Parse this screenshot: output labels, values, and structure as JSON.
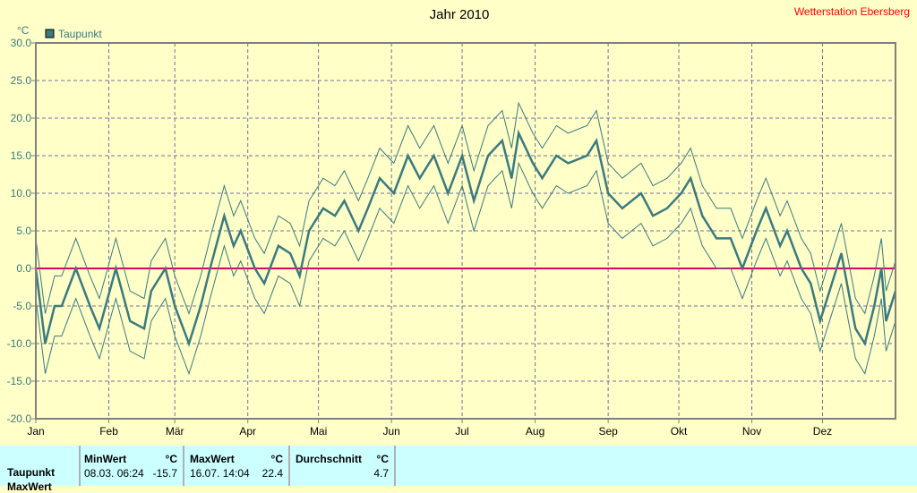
{
  "header": {
    "station": "Wetterstation Ebersberg"
  },
  "chart_data": {
    "type": "line",
    "title": "Jahr 2010",
    "ylabel": "°C",
    "ylim": [
      -20,
      30
    ],
    "yticks": [
      "30.0",
      "25.0",
      "20.0",
      "15.0",
      "10.0",
      "5.0",
      "0.0",
      "-5.0",
      "-10.0",
      "-15.0",
      "-20.0"
    ],
    "ytick_values": [
      30,
      25,
      20,
      15,
      10,
      5,
      0,
      -5,
      -10,
      -15,
      -20
    ],
    "xlim_days": [
      0,
      365
    ],
    "months": [
      "Jan",
      "Feb",
      "Mär",
      "Apr",
      "Mai",
      "Jun",
      "Jul",
      "Aug",
      "Sep",
      "Okt",
      "Nov",
      "Dez"
    ],
    "month_start_days": [
      0,
      31,
      59,
      90,
      120,
      151,
      181,
      212,
      243,
      273,
      304,
      334
    ],
    "grid": true,
    "legend": {
      "placement": "top-left",
      "entries": [
        "Taupunkt"
      ]
    },
    "reference_line": 0,
    "colors": {
      "series": "#3a7a80",
      "zero": "#e0006a",
      "grid": "#7070a0",
      "axis": "#808080"
    },
    "series": [
      {
        "name": "Taupunkt",
        "days": [
          0,
          4,
          8,
          11,
          17,
          23,
          27,
          34,
          40,
          46,
          49,
          55,
          59,
          65,
          70,
          74,
          80,
          84,
          87,
          93,
          97,
          103,
          108,
          112,
          116,
          122,
          127,
          131,
          137,
          141,
          146,
          152,
          158,
          163,
          169,
          175,
          181,
          186,
          192,
          198,
          202,
          205,
          211,
          215,
          221,
          226,
          234,
          238,
          243,
          249,
          257,
          262,
          268,
          274,
          278,
          283,
          289,
          295,
          300,
          306,
          310,
          316,
          319,
          325,
          329,
          333,
          336,
          342,
          348,
          352,
          356,
          359,
          361,
          365
        ],
        "values": [
          0,
          -10,
          -5,
          -5,
          0,
          -5,
          -8,
          0,
          -7,
          -8,
          -3,
          0,
          -5,
          -10,
          -5,
          0,
          7,
          3,
          5,
          0,
          -2,
          3,
          2,
          -1,
          5,
          8,
          7,
          9,
          5,
          8,
          12,
          10,
          15,
          12,
          15,
          10,
          15,
          9,
          15,
          17,
          12,
          18,
          14,
          12,
          15,
          14,
          15,
          17,
          10,
          8,
          10,
          7,
          8,
          10,
          12,
          7,
          4,
          4,
          0,
          5,
          8,
          3,
          5,
          0,
          -2,
          -7,
          -4,
          2,
          -8,
          -10,
          -5,
          0,
          -7,
          -3
        ],
        "band_halfwidth": 4
      }
    ]
  },
  "table": {
    "row_label": "Taupunkt",
    "next_row_label": "MaxWert",
    "min": {
      "header": "MinWert",
      "unit": "°C",
      "date": "08.03.  06:24",
      "value": "-15.7"
    },
    "max": {
      "header": "MaxWert",
      "unit": "°C",
      "date": "16.07.  14:04",
      "value": "22.4"
    },
    "avg": {
      "header": "Durchschnitt",
      "unit": "°C",
      "value": "4.7"
    }
  }
}
